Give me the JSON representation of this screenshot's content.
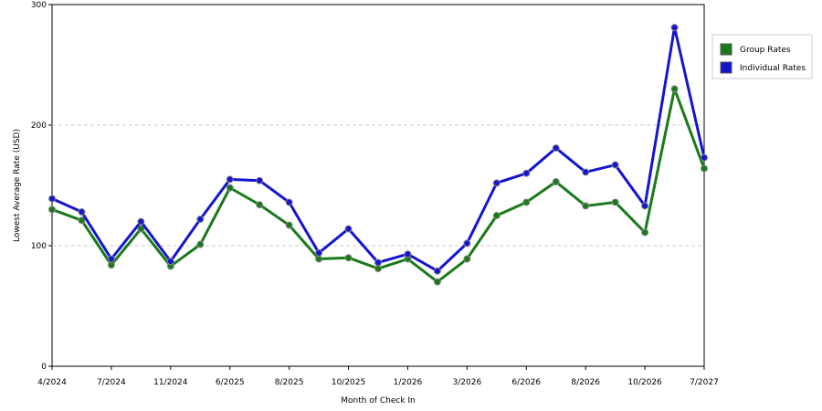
{
  "chart_data": {
    "type": "line",
    "x_label": "Month of Check In",
    "y_label": "Lowest Average Rate (USD)",
    "categories": [
      "4/2024",
      null,
      "7/2024",
      null,
      "11/2024",
      null,
      "6/2025",
      null,
      "8/2025",
      null,
      "10/2025",
      null,
      "1/2026",
      null,
      "3/2026",
      null,
      "6/2026",
      null,
      "8/2026",
      null,
      "10/2026",
      null,
      "7/2027"
    ],
    "series": [
      {
        "name": "Group Rates",
        "color": "#1a7a1a",
        "values": [
          130,
          121,
          84,
          114,
          83,
          101,
          148,
          134,
          117,
          89,
          90,
          81,
          89,
          70,
          89,
          125,
          136,
          153,
          133,
          136,
          111,
          230,
          164
        ]
      },
      {
        "name": "Individual Rates",
        "color": "#1515d0",
        "values": [
          139,
          128,
          89,
          120,
          87,
          122,
          155,
          154,
          136,
          94,
          114,
          86,
          93,
          79,
          102,
          152,
          160,
          181,
          161,
          167,
          133,
          281,
          173
        ]
      }
    ],
    "ylim": [
      0,
      300
    ],
    "yticks": [
      0,
      100,
      200,
      300
    ],
    "grid": true,
    "legend": "right"
  }
}
